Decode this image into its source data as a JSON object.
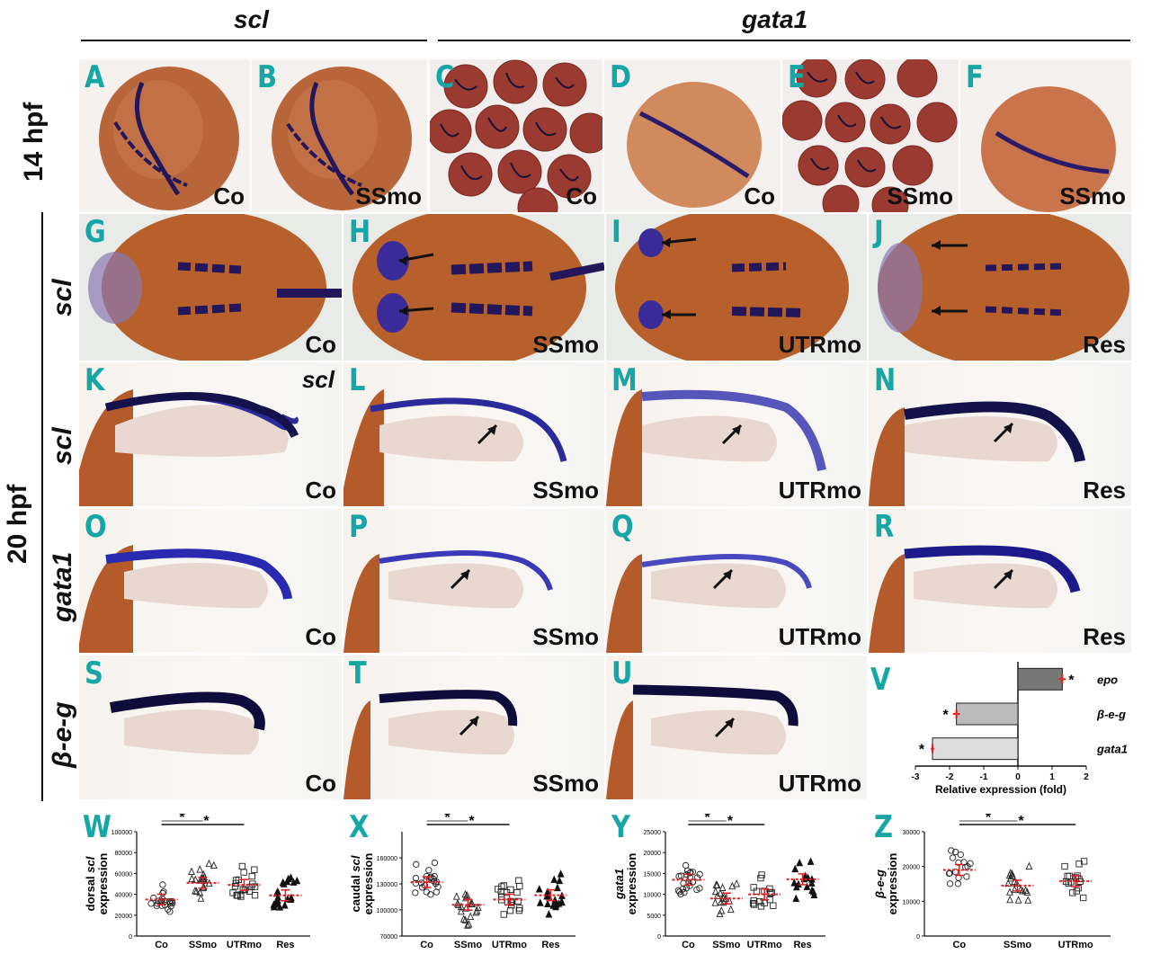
{
  "headers": {
    "left": "scl",
    "right": "gata1"
  },
  "time_labels": {
    "t14": "14 hpf",
    "t20": "20 hpf"
  },
  "row_labels": {
    "scl_dorsal": "scl",
    "scl_lateral": "scl",
    "gata1": "gata1",
    "beg": "β-e-g"
  },
  "panels": {
    "A": {
      "label": "A",
      "cond": "Co"
    },
    "B": {
      "label": "B",
      "cond": "SSmo"
    },
    "C": {
      "label": "C",
      "cond": "Co"
    },
    "D": {
      "label": "D",
      "cond": "Co"
    },
    "E": {
      "label": "E",
      "cond": "SSmo"
    },
    "F": {
      "label": "F",
      "cond": "SSmo"
    },
    "G": {
      "label": "G",
      "cond": "Co"
    },
    "H": {
      "label": "H",
      "cond": "SSmo"
    },
    "I": {
      "label": "I",
      "cond": "UTRmo"
    },
    "J": {
      "label": "J",
      "cond": "Res"
    },
    "K": {
      "label": "K",
      "cond": "Co",
      "gene": "scl"
    },
    "L": {
      "label": "L",
      "cond": "SSmo"
    },
    "M": {
      "label": "M",
      "cond": "UTRmo"
    },
    "N": {
      "label": "N",
      "cond": "Res"
    },
    "O": {
      "label": "O",
      "cond": "Co"
    },
    "P": {
      "label": "P",
      "cond": "SSmo"
    },
    "Q": {
      "label": "Q",
      "cond": "UTRmo"
    },
    "R": {
      "label": "R",
      "cond": "Res"
    },
    "S": {
      "label": "S",
      "cond": "Co"
    },
    "T": {
      "label": "T",
      "cond": "SSmo"
    },
    "U": {
      "label": "U",
      "cond": "UTRmo"
    },
    "V": {
      "label": "V"
    },
    "W": {
      "label": "W"
    },
    "X": {
      "label": "X"
    },
    "Y": {
      "label": "Y"
    },
    "Z": {
      "label": "Z"
    }
  },
  "colors": {
    "accent_teal": "#17a6a6",
    "stain": "#2a1e8a",
    "embryo": "#b5602f",
    "mean_red": "#e02020"
  },
  "chart_data": [
    {
      "id": "V",
      "type": "bar",
      "orientation": "horizontal",
      "categories": [
        "epo",
        "β-e-g",
        "gata1"
      ],
      "values": [
        1.3,
        -1.8,
        -2.5
      ],
      "errors": [
        0.1,
        0.1,
        0.05
      ],
      "significance": [
        "*",
        "*",
        "*"
      ],
      "xlabel": "Relative expression (fold)",
      "xlim": [
        -3,
        2
      ],
      "xticks": [
        "-3",
        "-2",
        "-1",
        "0",
        "1",
        "2"
      ]
    },
    {
      "id": "W",
      "type": "scatter",
      "title": "",
      "ylabel_parts": [
        "dorsal ",
        "scl",
        " expression"
      ],
      "ylim": [
        0,
        100000
      ],
      "yticks": [
        "0",
        "20000",
        "40000",
        "60000",
        "80000",
        "100000"
      ],
      "categories": [
        "Co",
        "SSmo",
        "UTRmo",
        "Res"
      ],
      "markers": [
        "circle",
        "triangle",
        "square",
        "triangle-filled"
      ],
      "means": [
        35000,
        51000,
        49000,
        39000
      ],
      "n": [
        22,
        20,
        20,
        20
      ],
      "sig_pairs": [
        {
          "from": 0,
          "to": 1,
          "label": "*"
        },
        {
          "from": 0,
          "to": 2,
          "label": "*"
        }
      ]
    },
    {
      "id": "X",
      "type": "scatter",
      "ylabel_parts": [
        "caudal ",
        "scl",
        " expression"
      ],
      "ylim": [
        70000,
        190000
      ],
      "yticks": [
        "70000",
        "100000",
        "130000",
        "160000"
      ],
      "categories": [
        "Co",
        "SSmo",
        "UTRmo",
        "Res"
      ],
      "markers": [
        "circle",
        "triangle",
        "square",
        "triangle-filled"
      ],
      "means": [
        132000,
        106000,
        112000,
        117000
      ],
      "n": [
        22,
        20,
        20,
        20
      ],
      "sig_pairs": [
        {
          "from": 0,
          "to": 1,
          "label": "*"
        },
        {
          "from": 0,
          "to": 2,
          "label": "*"
        }
      ]
    },
    {
      "id": "Y",
      "type": "scatter",
      "ylabel_parts": [
        "gata1",
        "",
        "expression"
      ],
      "ylim": [
        0,
        25000
      ],
      "yticks": [
        "0",
        "5000",
        "10000",
        "15000",
        "20000",
        "25000"
      ],
      "categories": [
        "Co",
        "SSmo",
        "UTRmo",
        "Res"
      ],
      "markers": [
        "circle",
        "triangle",
        "square",
        "triangle-filled"
      ],
      "means": [
        13500,
        9000,
        10000,
        13600
      ],
      "n": [
        24,
        18,
        16,
        16
      ],
      "sig_pairs": [
        {
          "from": 0,
          "to": 1,
          "label": "*"
        },
        {
          "from": 0,
          "to": 2,
          "label": "*"
        }
      ]
    },
    {
      "id": "Z",
      "type": "scatter",
      "ylabel_parts": [
        "β-e-g",
        "",
        "expression"
      ],
      "ylim": [
        0,
        30000
      ],
      "yticks": [
        "0",
        "10000",
        "20000",
        "30000"
      ],
      "categories": [
        "Co",
        "SSmo",
        "UTRmo"
      ],
      "markers": [
        "circle",
        "triangle",
        "square"
      ],
      "means": [
        19000,
        14500,
        15800
      ],
      "n": [
        16,
        18,
        16
      ],
      "sig_pairs": [
        {
          "from": 0,
          "to": 1,
          "label": "*"
        },
        {
          "from": 0,
          "to": 2,
          "label": "*"
        }
      ]
    }
  ]
}
